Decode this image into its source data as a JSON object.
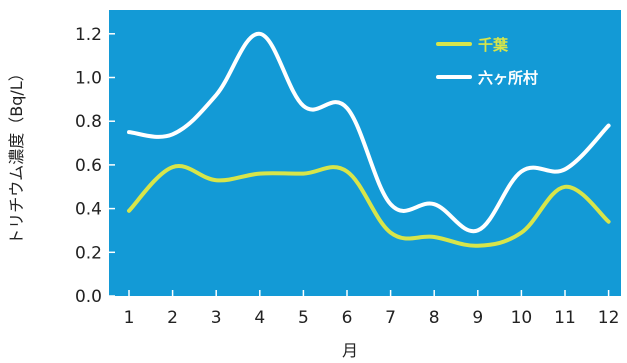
{
  "chart_data": {
    "type": "line",
    "title": "",
    "xlabel": "月",
    "ylabel": "トリチウム濃度（Bq/L）",
    "categories": [
      "1",
      "2",
      "3",
      "4",
      "5",
      "6",
      "7",
      "8",
      "9",
      "10",
      "11",
      "12"
    ],
    "ylim": [
      0,
      1.3
    ],
    "yticks": [
      "0.0",
      "0.2",
      "0.4",
      "0.6",
      "0.8",
      "1.0",
      "1.2"
    ],
    "grid": false,
    "legend_position": "top-right",
    "plot_background": "#139ad6",
    "series": [
      {
        "name": "千葉",
        "color": "#d7e54a",
        "values": [
          0.39,
          0.59,
          0.53,
          0.56,
          0.56,
          0.57,
          0.29,
          0.27,
          0.23,
          0.29,
          0.5,
          0.34
        ]
      },
      {
        "name": "六ヶ所村",
        "color": "#ffffff",
        "values": [
          0.75,
          0.74,
          0.92,
          1.2,
          0.87,
          0.86,
          0.42,
          0.42,
          0.3,
          0.57,
          0.58,
          0.78
        ]
      }
    ]
  }
}
